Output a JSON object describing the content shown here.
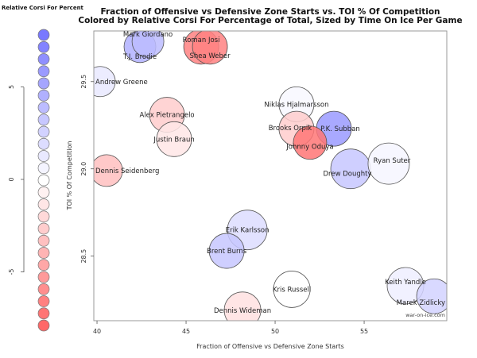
{
  "chart_data": {
    "type": "scatter",
    "title": "Fraction of Offensive vs Defensive Zone Starts vs. TOI % Of Competition",
    "subtitle": "Colored by Relative Corsi For Percentage of Total, Sized by Time On Ice Per Game",
    "xlabel": "Fraction of Offensive vs Defensive Zone Starts",
    "ylabel": "TOI % Of Competition",
    "xlim": [
      39.82,
      59.64
    ],
    "ylim": [
      28.13,
      29.79
    ],
    "xticks": [
      "40",
      "45",
      "50",
      "55"
    ],
    "xtick_values": [
      40,
      45,
      50,
      55
    ],
    "yticks": [
      "28.5",
      "29.0",
      "29.5"
    ],
    "ytick_values": [
      28.5,
      29.0,
      29.5
    ],
    "watermark": "war-on-ice.com",
    "legend": {
      "title": "Relative Corsi For Percent",
      "ticks": [
        "5",
        "0",
        "-5"
      ],
      "tick_values": [
        5,
        0,
        -5
      ],
      "values": [
        6,
        5.5,
        5,
        4.5,
        4,
        3.5,
        3,
        2.5,
        2,
        1.5,
        1,
        0.5,
        0,
        -0.5,
        -1,
        -1.5,
        -2,
        -2.5,
        -3,
        -3.5,
        -4,
        -4.5,
        -5,
        -5.5,
        -6
      ]
    },
    "colors": {
      "positive": "#7878ff",
      "neutral": "#ffffff",
      "negative": "#ff6868"
    },
    "points": [
      {
        "name": "T.J. Brodie",
        "x": 42.41,
        "y": 29.7,
        "rel_cf": 3.5,
        "toi": 20
      },
      {
        "name": "Mark Giordano",
        "x": 42.86,
        "y": 29.73,
        "rel_cf": 3.0,
        "toi": 20
      },
      {
        "name": "Roman Josi",
        "x": 45.85,
        "y": 29.7,
        "rel_cf": -5.0,
        "toi": 22
      },
      {
        "name": "Shea Weber",
        "x": 46.34,
        "y": 29.7,
        "rel_cf": -5.0,
        "toi": 22
      },
      {
        "name": "Andrew Greene",
        "x": 40.18,
        "y": 29.5,
        "rel_cf": 1.0,
        "toi": 19
      },
      {
        "name": "Niklas Hjalmarsson",
        "x": 51.2,
        "y": 29.37,
        "rel_cf": 0.3,
        "toi": 22
      },
      {
        "name": "Alex Pietrangelo",
        "x": 43.93,
        "y": 29.31,
        "rel_cf": -2.0,
        "toi": 22
      },
      {
        "name": "Justin Braun",
        "x": 44.33,
        "y": 29.17,
        "rel_cf": -1.0,
        "toi": 22
      },
      {
        "name": "Brooks Orpik",
        "x": 51.2,
        "y": 29.23,
        "rel_cf": -2.0,
        "toi": 22
      },
      {
        "name": "P.K. Subban",
        "x": 53.3,
        "y": 29.23,
        "rel_cf": 4.5,
        "toi": 22
      },
      {
        "name": "Johnny Oduya",
        "x": 51.96,
        "y": 29.15,
        "rel_cf": -5.5,
        "toi": 21
      },
      {
        "name": "Drew Doughty",
        "x": 54.24,
        "y": 29.0,
        "rel_cf": 2.5,
        "toi": 25
      },
      {
        "name": "Ryan Suter",
        "x": 56.38,
        "y": 29.03,
        "rel_cf": 0.4,
        "toi": 26
      },
      {
        "name": "Dennis Seidenberg",
        "x": 40.54,
        "y": 28.99,
        "rel_cf": -2.5,
        "toi": 20
      },
      {
        "name": "Erik Karlsson",
        "x": 48.44,
        "y": 28.65,
        "rel_cf": 1.5,
        "toi": 25
      },
      {
        "name": "Brent Burns",
        "x": 47.28,
        "y": 28.53,
        "rel_cf": 2.5,
        "toi": 22
      },
      {
        "name": "Kris Russell",
        "x": 50.94,
        "y": 28.31,
        "rel_cf": 0.0,
        "toi": 23
      },
      {
        "name": "Keith Yandle",
        "x": 57.32,
        "y": 28.33,
        "rel_cf": 0.7,
        "toi": 23
      },
      {
        "name": "Marek Zidlicky",
        "x": 58.93,
        "y": 28.27,
        "rel_cf": 2.0,
        "toi": 22
      },
      {
        "name": "Dennis Wideman",
        "x": 48.17,
        "y": 28.19,
        "rel_cf": -1.2,
        "toi": 23
      }
    ]
  }
}
